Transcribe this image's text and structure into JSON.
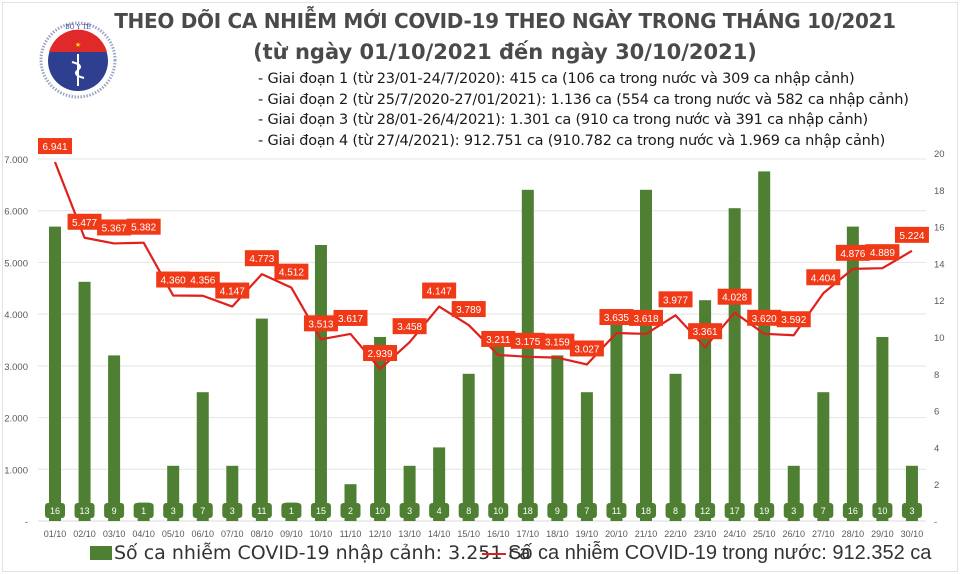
{
  "header": {
    "title": "THEO DÕI CA NHIỄM MỚI COVID-19 THEO NGÀY TRONG THÁNG 10/2021",
    "subtitle": "(từ ngày 01/10/2021 đến ngày 30/10/2021)",
    "stages": [
      "- Giai đoạn 1 (từ 23/01-24/7/2020): 415 ca (106 ca trong nước và 309 ca nhập cảnh)",
      "- Giai đoạn 2 (từ 25/7/2020-27/01/2021): 1.136 ca (554 ca trong nước và 582 ca nhập cảnh)",
      "- Giai đoạn 3 (từ 28/01-26/4/2021): 1.301 ca (910 ca trong nước và 391 ca nhập cảnh)",
      "- Giai đoạn 4 (từ 27/4/2021): 912.751 ca (910.782 ca trong nước và 1.969 ca nhập cảnh)"
    ]
  },
  "logo": {
    "text_top": "BỘ Y TẾ",
    "text_bottom": "MINISTRY OF HEALTH"
  },
  "chart_data": {
    "type": "bar+line",
    "categories": [
      "01/10",
      "02/10",
      "03/10",
      "04/10",
      "05/10",
      "06/10",
      "07/10",
      "08/10",
      "09/10",
      "10/10",
      "11/10",
      "12/10",
      "13/10",
      "14/10",
      "15/10",
      "16/10",
      "17/10",
      "18/10",
      "19/10",
      "20/10",
      "21/10",
      "22/10",
      "23/10",
      "24/10",
      "25/10",
      "26/10",
      "27/10",
      "28/10",
      "29/10",
      "30/10"
    ],
    "series": [
      {
        "name": "Số ca nhiễm COVID-19 nhập cảnh: 3.251 ca",
        "type": "bar",
        "axis": "right",
        "color": "#4e7f32",
        "values": [
          16,
          13,
          9,
          1,
          3,
          7,
          3,
          11,
          1,
          15,
          2,
          10,
          3,
          4,
          8,
          10,
          18,
          9,
          7,
          11,
          18,
          8,
          12,
          17,
          19,
          3,
          7,
          16,
          10,
          3
        ]
      },
      {
        "name": "Số ca nhiễm COVID-19 trong nước: 912.352 ca",
        "type": "line",
        "axis": "left",
        "color": "#e0201c",
        "values": [
          6941,
          5477,
          5367,
          5382,
          4360,
          4356,
          4147,
          4773,
          4512,
          3513,
          3617,
          2939,
          3458,
          4147,
          3789,
          3211,
          3175,
          3159,
          3027,
          3635,
          3618,
          3977,
          3361,
          4028,
          3620,
          3592,
          4404,
          4876,
          4889,
          5224
        ]
      }
    ],
    "left_axis": {
      "ylim": [
        0,
        7000
      ],
      "ticks": [
        "-",
        "1.000",
        "2.000",
        "3.000",
        "4.000",
        "5.000",
        "6.000",
        "7.000"
      ]
    },
    "right_axis": {
      "ylim": [
        0,
        20
      ],
      "ticks": [
        "-",
        "2",
        "4",
        "6",
        "8",
        "10",
        "12",
        "14",
        "16",
        "18",
        "20"
      ]
    },
    "grid": true,
    "legend": "bottom"
  }
}
